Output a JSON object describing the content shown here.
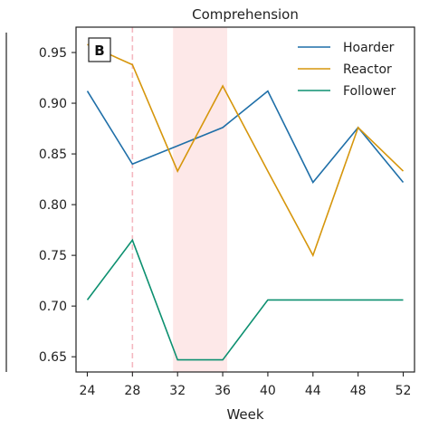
{
  "chart_data": {
    "type": "line",
    "title": "Comprehension",
    "panel_label": "B",
    "xlabel": "Week",
    "ylabel": "",
    "x": [
      24,
      28,
      32,
      36,
      40,
      44,
      48,
      52
    ],
    "xticks": [
      24,
      28,
      32,
      36,
      40,
      44,
      48,
      52
    ],
    "xlim": [
      23,
      53
    ],
    "yticks": [
      0.65,
      0.7,
      0.75,
      0.8,
      0.85,
      0.9,
      0.95
    ],
    "ylim": [
      0.635,
      0.975
    ],
    "grid": false,
    "legend": "top-right",
    "vline": {
      "x": 28,
      "style": "dashed",
      "color": "#f4b8c0"
    },
    "shaded_span": {
      "x": [
        31.6,
        36.4
      ],
      "color": "#fde8e8"
    },
    "series": [
      {
        "name": "Hoarder",
        "color": "#1f6fa8",
        "values": [
          0.912,
          0.84,
          0.858,
          0.876,
          0.912,
          0.822,
          0.876,
          0.822
        ]
      },
      {
        "name": "Reactor",
        "color": "#d6960c",
        "values": [
          0.958,
          0.938,
          0.833,
          0.917,
          0.833,
          0.75,
          0.876,
          0.833
        ]
      },
      {
        "name": "Follower",
        "color": "#0d9070",
        "values": [
          0.706,
          0.765,
          0.647,
          0.647,
          0.706,
          0.706,
          0.706,
          0.706
        ]
      }
    ]
  }
}
